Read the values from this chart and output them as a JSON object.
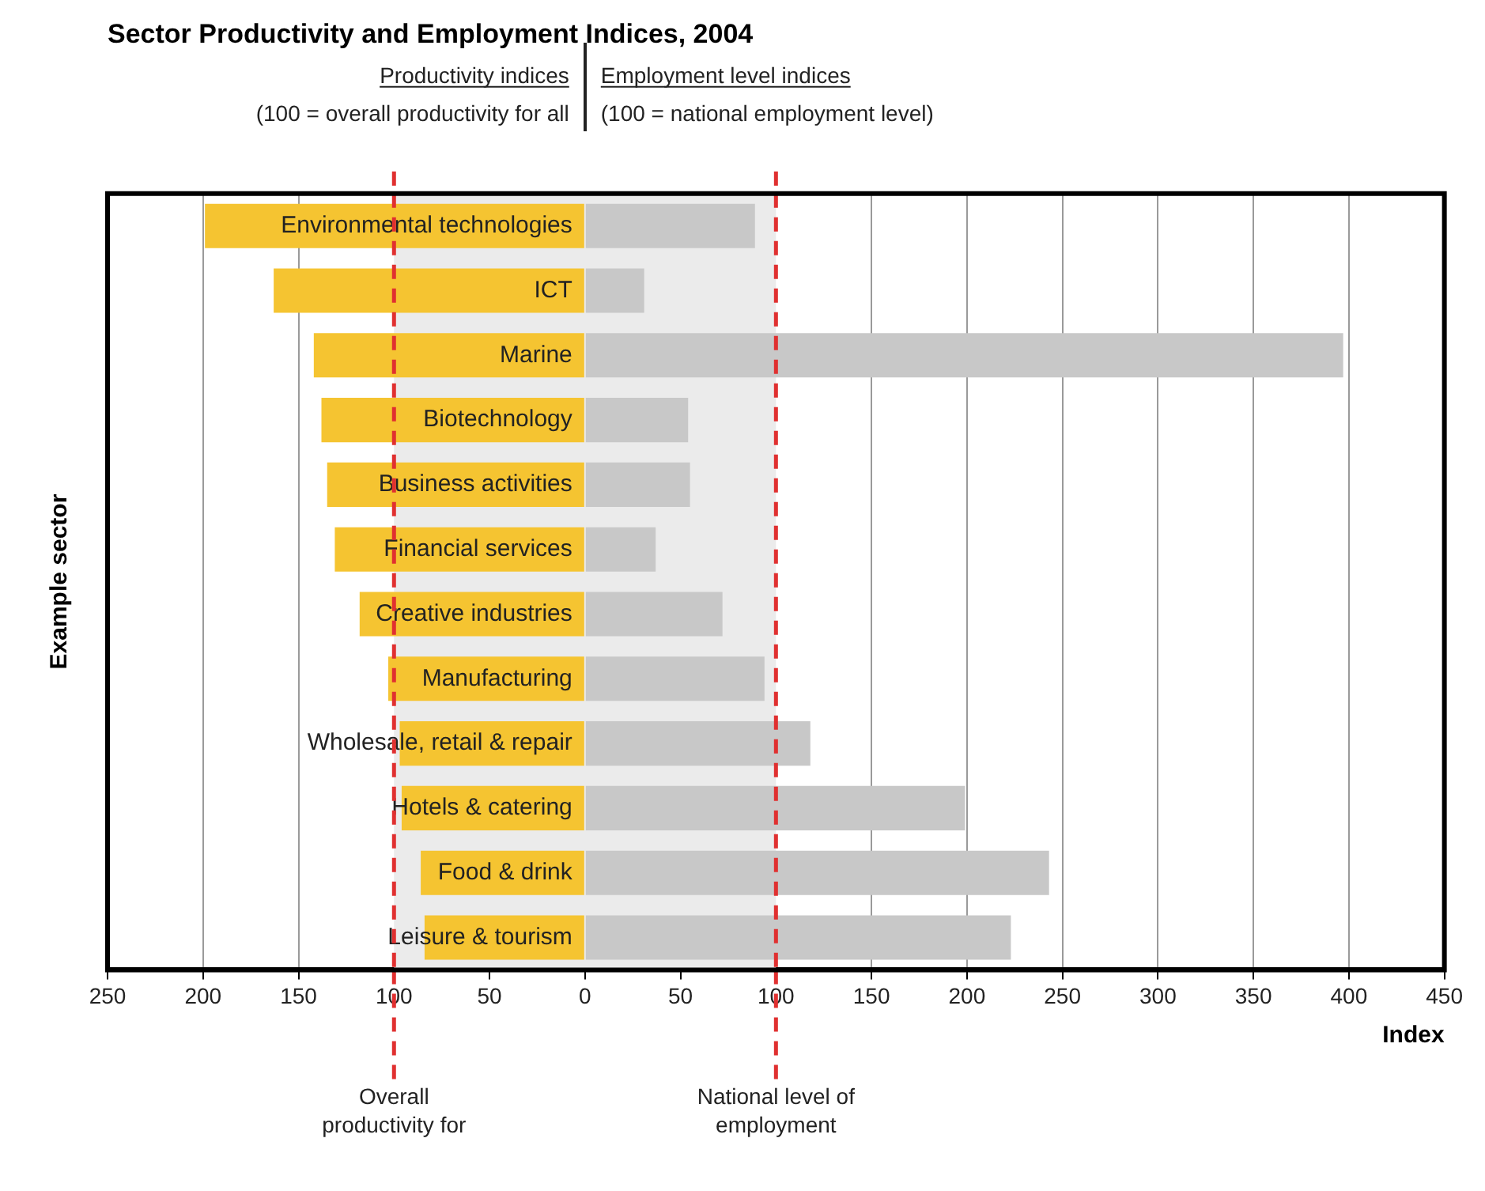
{
  "chart_data": {
    "type": "bar",
    "orientation": "horizontal",
    "stacked": true,
    "title": "Sector Productivity and Employment Indices, 2004",
    "xlabel": "Index",
    "ylabel": "Example sector",
    "categories": [
      "Environmental technologies",
      "ICT",
      "Marine",
      "Biotechnology",
      "Business activities",
      "Financial services",
      "Creative industries",
      "Manufacturing",
      "Wholesale, retail & repair",
      "Hotels & catering",
      "Food & drink",
      "Leisure & tourism"
    ],
    "series": [
      {
        "color": "#f5c431",
        "values": [
          -199,
          -163,
          -142,
          -138,
          -135,
          -131,
          -118,
          -103,
          -97,
          -96,
          -86,
          -84
        ]
      },
      {
        "color": "#c8c8c8",
        "values": [
          89,
          31,
          397,
          54,
          55,
          37,
          72,
          94,
          118,
          199,
          243,
          223
        ]
      }
    ],
    "xlim": [
      -250,
      450
    ],
    "xticks": [
      {
        "value": -250,
        "label": "250"
      },
      {
        "value": -200,
        "label": "200"
      },
      {
        "value": -150,
        "label": "150"
      },
      {
        "value": -100,
        "label": "100"
      },
      {
        "value": -50,
        "label": "50"
      },
      0,
      50,
      100,
      150,
      200,
      250,
      300,
      350,
      400,
      450
    ],
    "grid": "x",
    "legend": false,
    "bands": [
      {
        "axis": "x",
        "from": -100,
        "to": 100,
        "color": "#ebebeb"
      }
    ],
    "ref_lines": [
      {
        "axis": "x",
        "value": -100,
        "label": "Overall productivity for",
        "color": "#e03030",
        "line_style": "dashed"
      },
      {
        "axis": "x",
        "value": 100,
        "label": "National level of employment",
        "color": "#e03030",
        "line_style": "dashed"
      }
    ],
    "annotations": [
      "Productivity indices",
      "(100 = overall productivity for all",
      "Employment level indices",
      "(100 = national employment level)"
    ]
  }
}
